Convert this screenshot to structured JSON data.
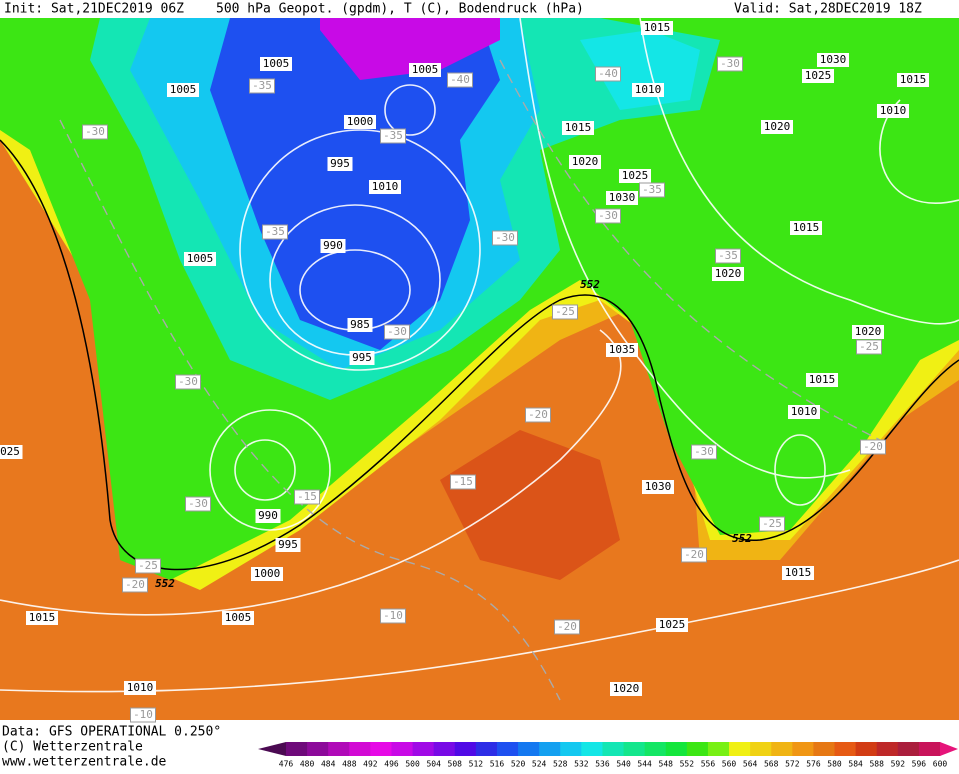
{
  "header": {
    "init": "Init: Sat,21DEC2019 06Z",
    "title": "500 hPa Geopot. (gpdm), T (C), Bodendruck (hPa)",
    "valid": "Valid: Sat,28DEC2019 18Z"
  },
  "footer": {
    "data": "Data: GFS OPERATIONAL 0.250°",
    "copyright": "(C) Wetterzentrale",
    "url": "www.wetterzentrale.de"
  },
  "colorbar": {
    "levels": [
      476,
      480,
      484,
      488,
      492,
      496,
      500,
      504,
      508,
      512,
      516,
      520,
      524,
      528,
      532,
      536,
      540,
      544,
      548,
      552,
      556,
      560,
      564,
      568,
      572,
      576,
      580,
      584,
      588,
      592,
      596,
      600
    ],
    "colors": [
      "#4b0a52",
      "#6e0a7a",
      "#8c0a9a",
      "#b00ab8",
      "#d20ad4",
      "#e60ae6",
      "#c80ae6",
      "#a00ae6",
      "#780ae6",
      "#500ae6",
      "#2d2de6",
      "#1e50f0",
      "#1478f0",
      "#14a0f0",
      "#14c8f0",
      "#14e6e6",
      "#14e6b4",
      "#14e68c",
      "#14e664",
      "#14e63c",
      "#3ce614",
      "#78f014",
      "#f0f014",
      "#f0d214",
      "#f0b414",
      "#f09614",
      "#e67814",
      "#e65a14",
      "#d23c14",
      "#be2828",
      "#aa1e3c",
      "#c8145a",
      "#e6147a"
    ]
  },
  "pressure_labels": [
    "1015",
    "1005",
    "1005",
    "1030",
    "1025",
    "1015",
    "1005",
    "1010",
    "1010",
    "1000",
    "1015",
    "1020",
    "995",
    "1020",
    "1025",
    "1010",
    "1030",
    "1015",
    "990",
    "1005",
    "1020",
    "985",
    "1020",
    "1035",
    "995",
    "1015",
    "1010",
    "025",
    "1030",
    "990",
    "995",
    "1000",
    "1015",
    "1015",
    "1005",
    "1025",
    "1010",
    "1020"
  ],
  "temperature_labels": [
    "-35",
    "-40",
    "-40",
    "-30",
    "-30",
    "-35",
    "-35",
    "-30",
    "-35",
    "-30",
    "-35",
    "-25",
    "-30",
    "-25",
    "-30",
    "-20",
    "-30",
    "-20",
    "-15",
    "-15",
    "-30",
    "-25",
    "-20",
    "-25",
    "-20",
    "-10",
    "-20",
    "-10"
  ],
  "height_labels": [
    "552",
    "552",
    "552"
  ]
}
